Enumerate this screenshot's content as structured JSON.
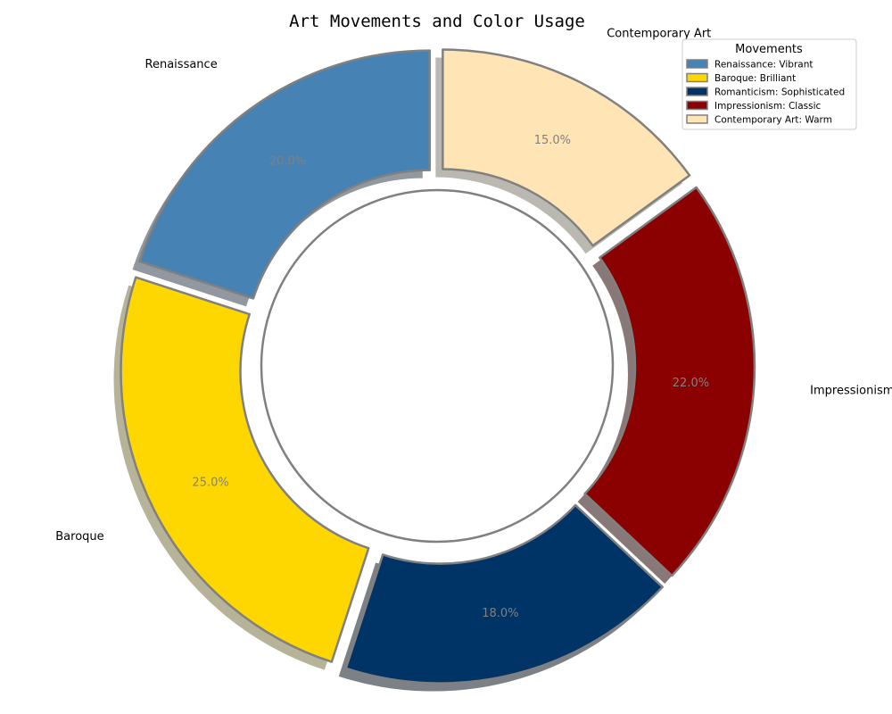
{
  "chart_data": {
    "type": "pie",
    "title": "Art Movements and Color Usage",
    "donut": true,
    "start_angle_deg": 90,
    "direction": "counterclockwise",
    "categories": [
      "Renaissance",
      "Baroque",
      "Romanticism",
      "Impressionism",
      "Contemporary Art"
    ],
    "values": [
      20.0,
      25.0,
      18.0,
      22.0,
      15.0
    ],
    "percent_labels": [
      "20.0%",
      "25.0%",
      "18.0%",
      "22.0%",
      "15.0%"
    ],
    "colors": [
      "#4682b4",
      "#ffd700",
      "#003366",
      "#8b0000",
      "#ffe4b5"
    ],
    "edge_color": "#808080",
    "legend": {
      "title": "Movements",
      "placement": "upper-right",
      "entries": [
        "Renaissance: Vibrant",
        "Baroque: Brilliant",
        "Romanticism: Sophisticated",
        "Impressionism: Classic",
        "Contemporary Art: Warm"
      ]
    }
  }
}
